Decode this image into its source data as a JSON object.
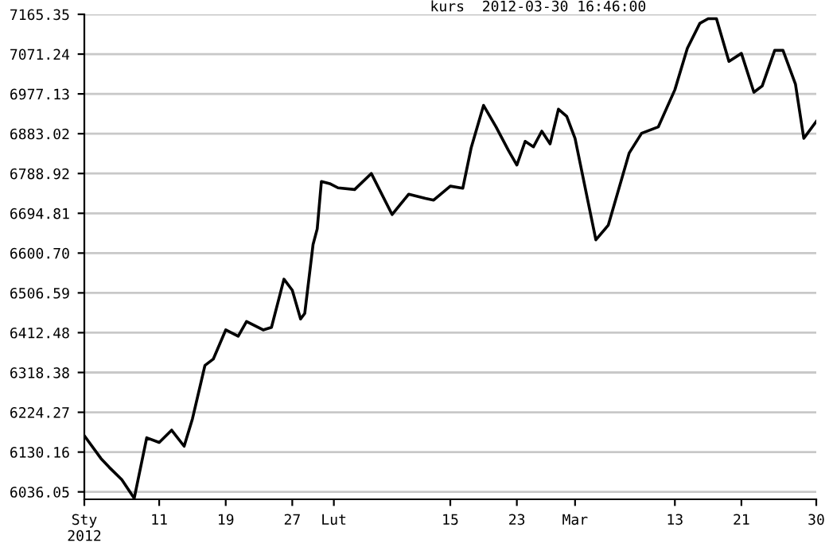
{
  "chart_data": {
    "type": "line",
    "title": "kurs  2012-03-30 16:46:00",
    "x": [
      "2012-01-02",
      "2012-01-04",
      "2012-01-05",
      "2012-01-06T12:00",
      "2012-01-08",
      "2012-01-09T12:00",
      "2012-01-11",
      "2012-01-12T12:00",
      "2012-01-14",
      "2012-01-15",
      "2012-01-16T12:00",
      "2012-01-17T12:00",
      "2012-01-19",
      "2012-01-20T12:00",
      "2012-01-21T12:00",
      "2012-01-23T12:00",
      "2012-01-24T12:00",
      "2012-01-26",
      "2012-01-27",
      "2012-01-28",
      "2012-01-28T12:00",
      "2012-01-29T12:00",
      "2012-01-30",
      "2012-01-30T12:00",
      "2012-01-31T12:00",
      "2012-02-01T12:00",
      "2012-02-03T12:00",
      "2012-02-05T12:00",
      "2012-02-08",
      "2012-02-10",
      "2012-02-12",
      "2012-02-13",
      "2012-02-15",
      "2012-02-16T12:00",
      "2012-02-17T12:00",
      "2012-02-19",
      "2012-02-20T12:00",
      "2012-02-22",
      "2012-02-23",
      "2012-02-24",
      "2012-02-25",
      "2012-02-26",
      "2012-02-27",
      "2012-02-28",
      "2012-02-29",
      "2012-03-01",
      "2012-03-03T12:00",
      "2012-03-05",
      "2012-03-07T12:00",
      "2012-03-09",
      "2012-03-11",
      "2012-03-13",
      "2012-03-14T12:00",
      "2012-03-16",
      "2012-03-17",
      "2012-03-18",
      "2012-03-19T12:00",
      "2012-03-21",
      "2012-03-22T12:00",
      "2012-03-23T12:00",
      "2012-03-25",
      "2012-03-26",
      "2012-03-27T12:00",
      "2012-03-28T12:00",
      "2012-03-30"
    ],
    "series": [
      {
        "color": "#000000",
        "values": [
          6169,
          6115,
          6094,
          6065,
          6021,
          6164,
          6153,
          6182,
          6144,
          6209,
          6335,
          6350,
          6419,
          6404,
          6439,
          6419,
          6425,
          6539,
          6513,
          6445,
          6458,
          6621,
          6658,
          6770,
          6765,
          6755,
          6751,
          6789,
          6692,
          6740,
          6730,
          6726,
          6759,
          6754,
          6849,
          6950,
          6899,
          6843,
          6809,
          6865,
          6852,
          6889,
          6859,
          6941,
          6924,
          6872,
          6632,
          6667,
          6837,
          6884,
          6899,
          6987,
          7085,
          7144,
          7155,
          7155,
          7054,
          7073,
          6981,
          6996,
          7080,
          7080,
          7000,
          6872,
          6912
        ]
      }
    ],
    "xlim": [
      "2012-01-02",
      "2012-03-30"
    ],
    "xticks": [
      {
        "value": "2012-01-02",
        "label": "Sty\n2012"
      },
      {
        "value": "2012-01-11",
        "label": "11"
      },
      {
        "value": "2012-01-19",
        "label": "19"
      },
      {
        "value": "2012-01-27",
        "label": "27"
      },
      {
        "value": "2012-02-01",
        "label": "Lut"
      },
      {
        "value": "2012-02-15",
        "label": "15"
      },
      {
        "value": "2012-02-23",
        "label": "23"
      },
      {
        "value": "2012-03-01",
        "label": "Mar"
      },
      {
        "value": "2012-03-13",
        "label": "13"
      },
      {
        "value": "2012-03-21",
        "label": "21"
      },
      {
        "value": "2012-03-30",
        "label": "30"
      }
    ],
    "ylim": [
      6018.5,
      7165.35
    ],
    "yticks": [
      6036.05,
      6130.16,
      6224.27,
      6318.38,
      6412.48,
      6506.59,
      {
        "value": 6600.7,
        "label": "6600.70"
      },
      6694.81,
      6788.92,
      6883.02,
      6977.13,
      7071.24,
      7165.35
    ],
    "grid": "y",
    "marker": "none",
    "line_style": "solid"
  }
}
